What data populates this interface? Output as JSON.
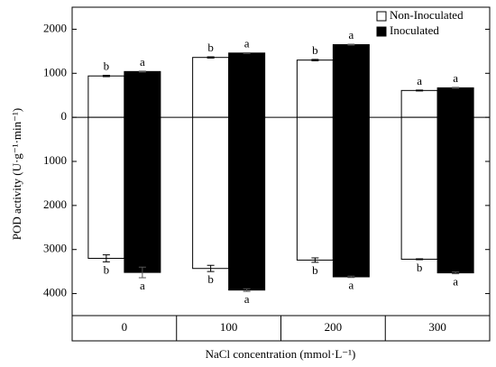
{
  "chart_data": {
    "type": "bar",
    "x_label": "NaCl concentration (mmol·L⁻¹)",
    "y_label": "POD activity (U·g⁻¹·min⁻¹)",
    "categories": [
      "0",
      "100",
      "200",
      "300"
    ],
    "ylim": [
      -4500,
      2500
    ],
    "yticks": [
      2000,
      1000,
      0,
      {
        "value": -1000,
        "label": "1000"
      },
      {
        "value": -2000,
        "label": "2000"
      },
      {
        "value": -3000,
        "label": "3000"
      },
      {
        "value": -4000,
        "label": "4000"
      }
    ],
    "legend": "upper right",
    "series": [
      {
        "name": "Non-Inoculated",
        "color": "#ffffff",
        "values": [
          940,
          1360,
          1300,
          610
        ],
        "errors": [
          15,
          15,
          15,
          10
        ],
        "letters": [
          "b",
          "b",
          "b",
          "a"
        ],
        "lower_values": [
          -3200,
          -3430,
          -3240,
          -3220
        ],
        "lower_errors": [
          80,
          70,
          50,
          10
        ],
        "lower_letters": [
          "b",
          "b",
          "b",
          "b"
        ]
      },
      {
        "name": "Inoculated",
        "color": "#000000",
        "values": [
          1040,
          1460,
          1650,
          670
        ],
        "errors": [
          10,
          10,
          10,
          10
        ],
        "letters": [
          "a",
          "a",
          "a",
          "a"
        ],
        "lower_values": [
          -3520,
          -3920,
          -3620,
          -3530
        ],
        "lower_errors": [
          120,
          30,
          15,
          20
        ],
        "lower_letters": [
          "a",
          "a",
          "a",
          "a"
        ]
      }
    ]
  }
}
